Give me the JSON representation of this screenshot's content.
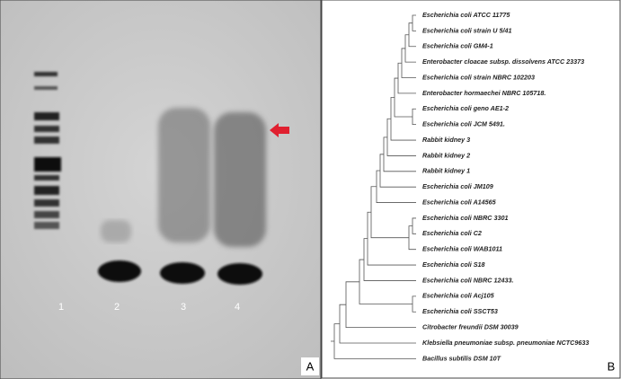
{
  "gel": {
    "lane_labels": [
      "1",
      "2",
      "3",
      "4"
    ],
    "panel_label": "A"
  },
  "tree": {
    "panel_label": "B",
    "leaves": [
      "Escherichia coli ATCC 11775",
      "Escherichia coli strain U 5/41",
      "Escherichia coli GM4-1",
      "Enterobacter cloacae subsp. dissolvens ATCC 23373",
      "Escherichia coli strain NBRC 102203",
      "Enterobacter hormaechei NBRC 105718.",
      "Escherichia coli geno AE1-2",
      "Escherichia coli JCM 5491.",
      "Rabbit kidney 3",
      "Rabbit kidney 2",
      "Rabbit kidney 1",
      "Escherichia coli JM109",
      "Escherichia coli A14565",
      "Escherichia coli NBRC 3301",
      "Escherichia coli C2",
      "Escherichia coli WAB1011",
      "Escherichia coli S18",
      "Escherichia coli NBRC 12433.",
      "Escherichia coli Acj105",
      "Escherichia coli SSCT53",
      "Citrobacter freundii DSM 30039",
      "Klebsiella pneumoniae subsp. pneumoniae NCTC9633",
      "Bacillus subtilis DSM 10T"
    ]
  }
}
